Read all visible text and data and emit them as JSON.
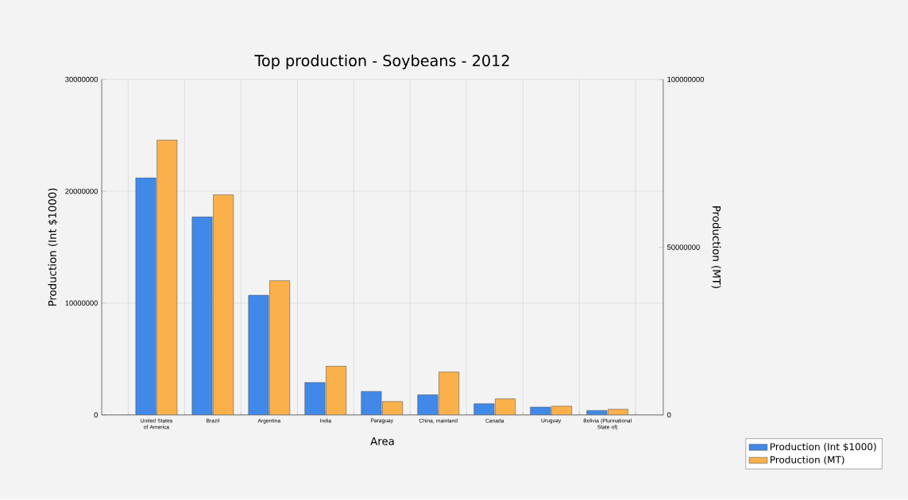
{
  "chart_data": {
    "type": "bar",
    "title": "Top production - Soybeans - 2012",
    "xlabel": "Area",
    "ylabel": "Production (Int $1000)",
    "y2label": "Production (MT)",
    "categories": [
      "United States of America",
      "Brazil",
      "Argentina",
      "India",
      "Paraguay",
      "China, mainland",
      "Canada",
      "Uruguay",
      "Bolivia (Plurinational State of)"
    ],
    "series": [
      {
        "name": "Production (Int $1000)",
        "color": "#4189e8",
        "values": [
          21200000,
          17700000,
          10700000,
          2900000,
          2100000,
          1800000,
          1000000,
          700000,
          400000
        ]
      },
      {
        "name": "Production (MT)",
        "color": "#fbb14b",
        "axis": "y2",
        "values": [
          81900000,
          65600000,
          40000000,
          14500000,
          4000000,
          12800000,
          4800000,
          2600000,
          1700000
        ]
      }
    ],
    "ylim": [
      0,
      30000000
    ],
    "yticks": [
      0,
      10000000,
      20000000,
      30000000
    ],
    "y2lim": [
      0,
      100000000
    ],
    "y2ticks": [
      0,
      50000000,
      100000000
    ],
    "grid": true,
    "legend": "bottom right"
  }
}
